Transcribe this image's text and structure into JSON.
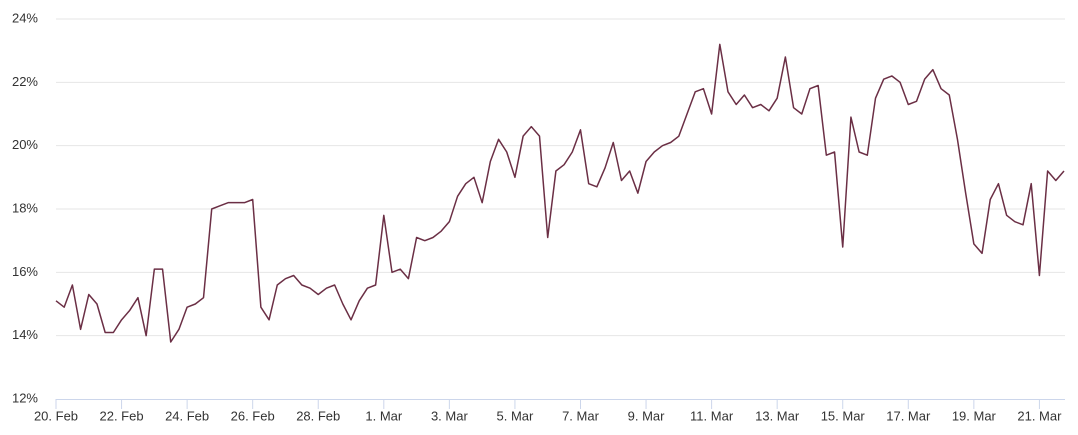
{
  "chart_data": {
    "type": "line",
    "categories": [
      "20. Feb",
      null,
      null,
      null,
      null,
      null,
      null,
      null,
      "22. Feb",
      null,
      null,
      null,
      null,
      null,
      null,
      null,
      "24. Feb",
      null,
      null,
      null,
      null,
      null,
      null,
      null,
      "26. Feb",
      null,
      null,
      null,
      null,
      null,
      null,
      null,
      "28. Feb",
      null,
      null,
      null,
      null,
      null,
      null,
      null,
      "1. Mar",
      null,
      null,
      null,
      null,
      null,
      null,
      null,
      "3. Mar",
      null,
      null,
      null,
      null,
      null,
      null,
      null,
      "5. Mar",
      null,
      null,
      null,
      null,
      null,
      null,
      null,
      "7. Mar",
      null,
      null,
      null,
      null,
      null,
      null,
      null,
      "9. Mar",
      null,
      null,
      null,
      null,
      null,
      null,
      null,
      "11. Mar",
      null,
      null,
      null,
      null,
      null,
      null,
      null,
      "13. Mar",
      null,
      null,
      null,
      null,
      null,
      null,
      null,
      "15. Mar",
      null,
      null,
      null,
      null,
      null,
      null,
      null,
      "17. Mar",
      null,
      null,
      null,
      null,
      null,
      null,
      null,
      "19. Mar",
      null,
      null,
      null,
      null,
      null,
      null,
      null,
      "21. Mar",
      null,
      null,
      null
    ],
    "series": [
      {
        "color": "#6b2f45",
        "values": [
          15.1,
          14.9,
          15.6,
          14.2,
          15.3,
          15.0,
          14.1,
          14.1,
          14.5,
          14.8,
          15.2,
          14.0,
          16.1,
          16.1,
          13.8,
          14.2,
          14.9,
          15.0,
          15.2,
          18.0,
          18.1,
          18.2,
          18.2,
          18.2,
          18.3,
          14.9,
          14.5,
          15.6,
          15.8,
          15.9,
          15.6,
          15.5,
          15.3,
          15.5,
          15.6,
          15.0,
          14.5,
          15.1,
          15.5,
          15.6,
          17.8,
          16.0,
          16.1,
          15.8,
          17.1,
          17.0,
          17.1,
          17.3,
          17.6,
          18.4,
          18.8,
          19.0,
          18.2,
          19.5,
          20.2,
          19.8,
          19.0,
          20.3,
          20.6,
          20.3,
          17.1,
          19.2,
          19.4,
          19.8,
          20.5,
          18.8,
          18.7,
          19.3,
          20.1,
          18.9,
          19.2,
          18.5,
          19.5,
          19.8,
          20.0,
          20.1,
          20.3,
          21.0,
          21.7,
          21.8,
          21.0,
          23.2,
          21.7,
          21.3,
          21.6,
          21.2,
          21.3,
          21.1,
          21.5,
          22.8,
          21.2,
          21.0,
          21.8,
          21.9,
          19.7,
          19.8,
          16.8,
          20.9,
          19.8,
          19.7,
          21.5,
          22.1,
          22.2,
          22.0,
          21.3,
          21.4,
          22.1,
          22.4,
          21.8,
          21.6,
          20.2,
          18.5,
          16.9,
          16.6,
          18.3,
          18.8,
          17.8,
          17.6,
          17.5,
          18.8,
          15.9,
          19.2,
          18.9,
          19.2
        ]
      }
    ],
    "ylim": [
      12,
      24
    ],
    "yticks": [
      {
        "value": 12,
        "label": "12%"
      },
      {
        "value": 14,
        "label": "14%"
      },
      {
        "value": 16,
        "label": "16%"
      },
      {
        "value": 18,
        "label": "18%"
      },
      {
        "value": 20,
        "label": "20%"
      },
      {
        "value": 22,
        "label": "22%"
      },
      {
        "value": 24,
        "label": "24%"
      }
    ],
    "grid": true
  }
}
